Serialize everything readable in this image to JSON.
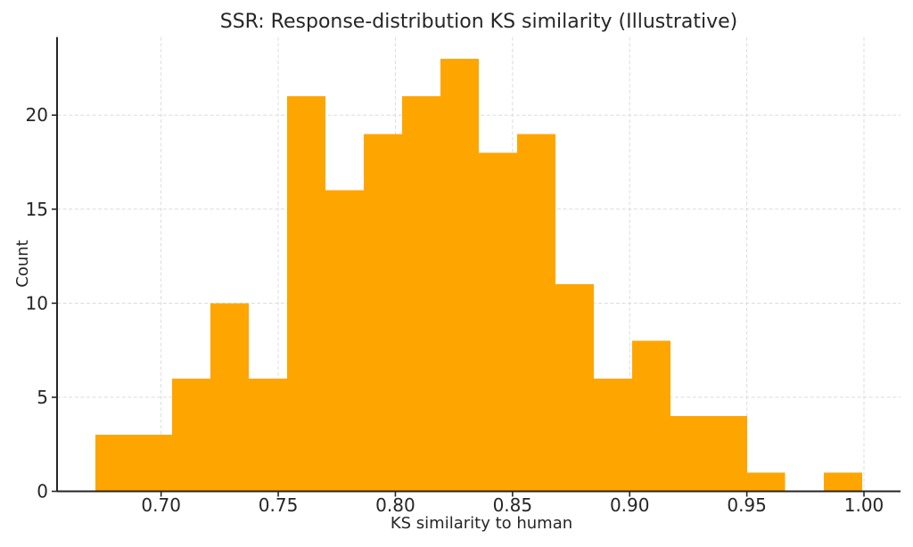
{
  "chart_data": {
    "type": "bar",
    "subtype": "histogram",
    "title": "SSR: Response-distribution KS similarity (Illustrative)",
    "xlabel": "KS similarity to human",
    "ylabel": "Count",
    "bin_edges": [
      0.672,
      0.6884,
      0.7047,
      0.7211,
      0.7374,
      0.7538,
      0.7701,
      0.7865,
      0.8029,
      0.8192,
      0.8356,
      0.8519,
      0.8683,
      0.8846,
      0.901,
      0.9174,
      0.9337,
      0.9501,
      0.9664,
      0.9828,
      0.9992
    ],
    "counts": [
      3,
      3,
      6,
      10,
      6,
      21,
      16,
      19,
      21,
      23,
      18,
      19,
      11,
      6,
      8,
      4,
      4,
      1,
      0,
      1
    ],
    "xlim": [
      0.6556,
      1.0156
    ],
    "ylim": [
      0,
      24.15
    ],
    "xticks": {
      "values": [
        0.7,
        0.75,
        0.8,
        0.85,
        0.9,
        0.95,
        1.0
      ],
      "labels": [
        "0.70",
        "0.75",
        "0.80",
        "0.85",
        "0.90",
        "0.95",
        "1.00"
      ]
    },
    "yticks": {
      "values": [
        0,
        5,
        10,
        15,
        20
      ],
      "labels": [
        "0",
        "5",
        "10",
        "15",
        "20"
      ]
    },
    "legend": "none",
    "grid": {
      "visible": true,
      "style": "dashed",
      "axes": "both"
    },
    "colors": {
      "bar": "#FFA500",
      "grid": "#dcdcdc",
      "axis": "#262626",
      "text": "#262626",
      "background": "#ffffff"
    }
  }
}
